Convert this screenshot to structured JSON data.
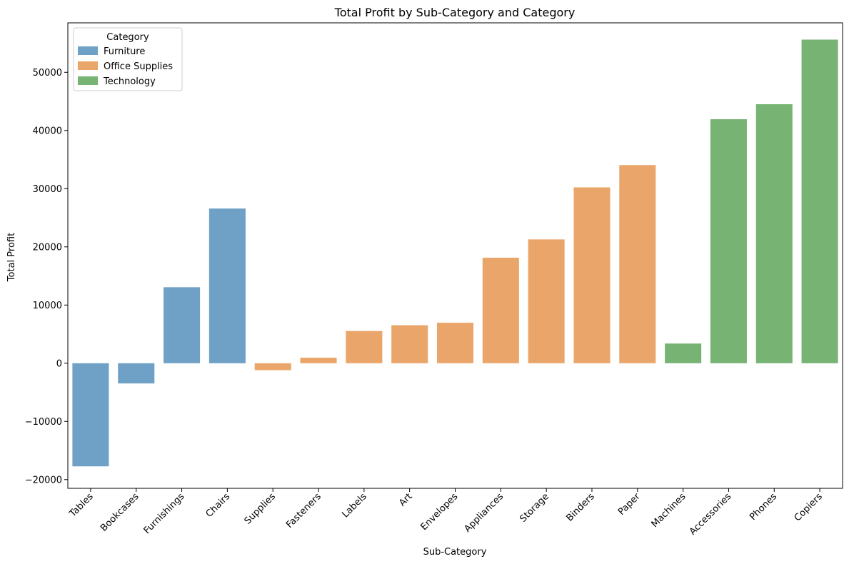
{
  "chart_data": {
    "type": "bar",
    "title": "Total Profit by Sub-Category and Category",
    "xlabel": "Sub-Category",
    "ylabel": "Total Profit",
    "ylim": [
      -21500,
      58500
    ],
    "yticks": [
      -20000,
      -10000,
      0,
      10000,
      20000,
      30000,
      40000,
      50000
    ],
    "ytick_labels": [
      "−20000",
      "−10000",
      "0",
      "10000",
      "20000",
      "30000",
      "40000",
      "50000"
    ],
    "categories": [
      "Tables",
      "Bookcases",
      "Furnishings",
      "Chairs",
      "Supplies",
      "Fasteners",
      "Labels",
      "Art",
      "Envelopes",
      "Appliances",
      "Storage",
      "Binders",
      "Paper",
      "Machines",
      "Accessories",
      "Phones",
      "Copiers"
    ],
    "values": [
      -17725,
      -3473,
      13059,
      26590,
      -1189,
      950,
      5546,
      6528,
      6964,
      18138,
      21279,
      30222,
      34054,
      3385,
      41937,
      44516,
      55618
    ],
    "bar_category": [
      "Furniture",
      "Furniture",
      "Furniture",
      "Furniture",
      "Office Supplies",
      "Office Supplies",
      "Office Supplies",
      "Office Supplies",
      "Office Supplies",
      "Office Supplies",
      "Office Supplies",
      "Office Supplies",
      "Office Supplies",
      "Technology",
      "Technology",
      "Technology",
      "Technology"
    ],
    "legend": {
      "title": "Category",
      "placement": "top-left",
      "entries": [
        {
          "name": "Furniture",
          "color": "#6fa1c6"
        },
        {
          "name": "Office Supplies",
          "color": "#eaa66a"
        },
        {
          "name": "Technology",
          "color": "#77b474"
        }
      ]
    },
    "grid": false
  }
}
